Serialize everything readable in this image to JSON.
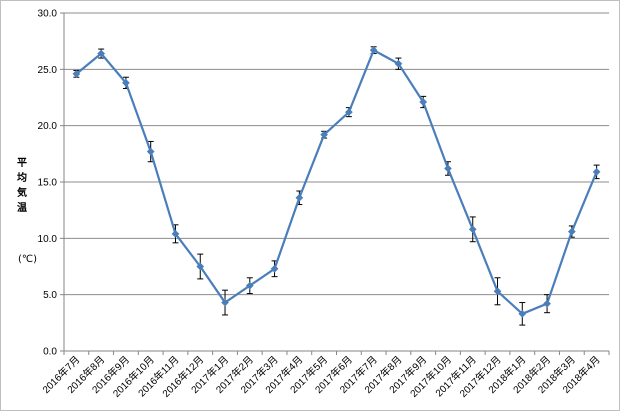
{
  "chart_data": {
    "type": "line",
    "ylabel_chars": [
      "平",
      "均",
      "気",
      "温"
    ],
    "unit": "(℃)",
    "ylim": [
      0,
      30
    ],
    "ytick_values": [
      0,
      5,
      10,
      15,
      20,
      25,
      30
    ],
    "ytick_labels": [
      "0.0",
      "5.0",
      "10.0",
      "15.0",
      "20.0",
      "25.0",
      "30.0"
    ],
    "grid": "horizontal",
    "error_bars": true,
    "color": "#4a7ebb",
    "categories": [
      "2016年7月",
      "2016年8月",
      "2016年9月",
      "2016年10月",
      "2016年11月",
      "2016年12月",
      "2017年1月",
      "2017年2月",
      "2017年3月",
      "2017年4月",
      "2017年5月",
      "2017年6月",
      "2017年7月",
      "2017年8月",
      "2017年9月",
      "2017年10月",
      "2017年11月",
      "2017年12月",
      "2018年1月",
      "2018年2月",
      "2018年3月",
      "2018年4月"
    ],
    "values": [
      24.6,
      26.4,
      23.8,
      17.7,
      10.4,
      7.5,
      4.3,
      5.8,
      7.3,
      13.6,
      19.2,
      21.2,
      26.7,
      25.5,
      22.1,
      16.2,
      10.8,
      5.3,
      3.3,
      4.2,
      10.6,
      15.9
    ],
    "errors": [
      0.3,
      0.4,
      0.5,
      0.9,
      0.8,
      1.1,
      1.1,
      0.7,
      0.7,
      0.6,
      0.3,
      0.4,
      0.3,
      0.5,
      0.5,
      0.6,
      1.1,
      1.2,
      1.0,
      0.8,
      0.5,
      0.6
    ]
  }
}
